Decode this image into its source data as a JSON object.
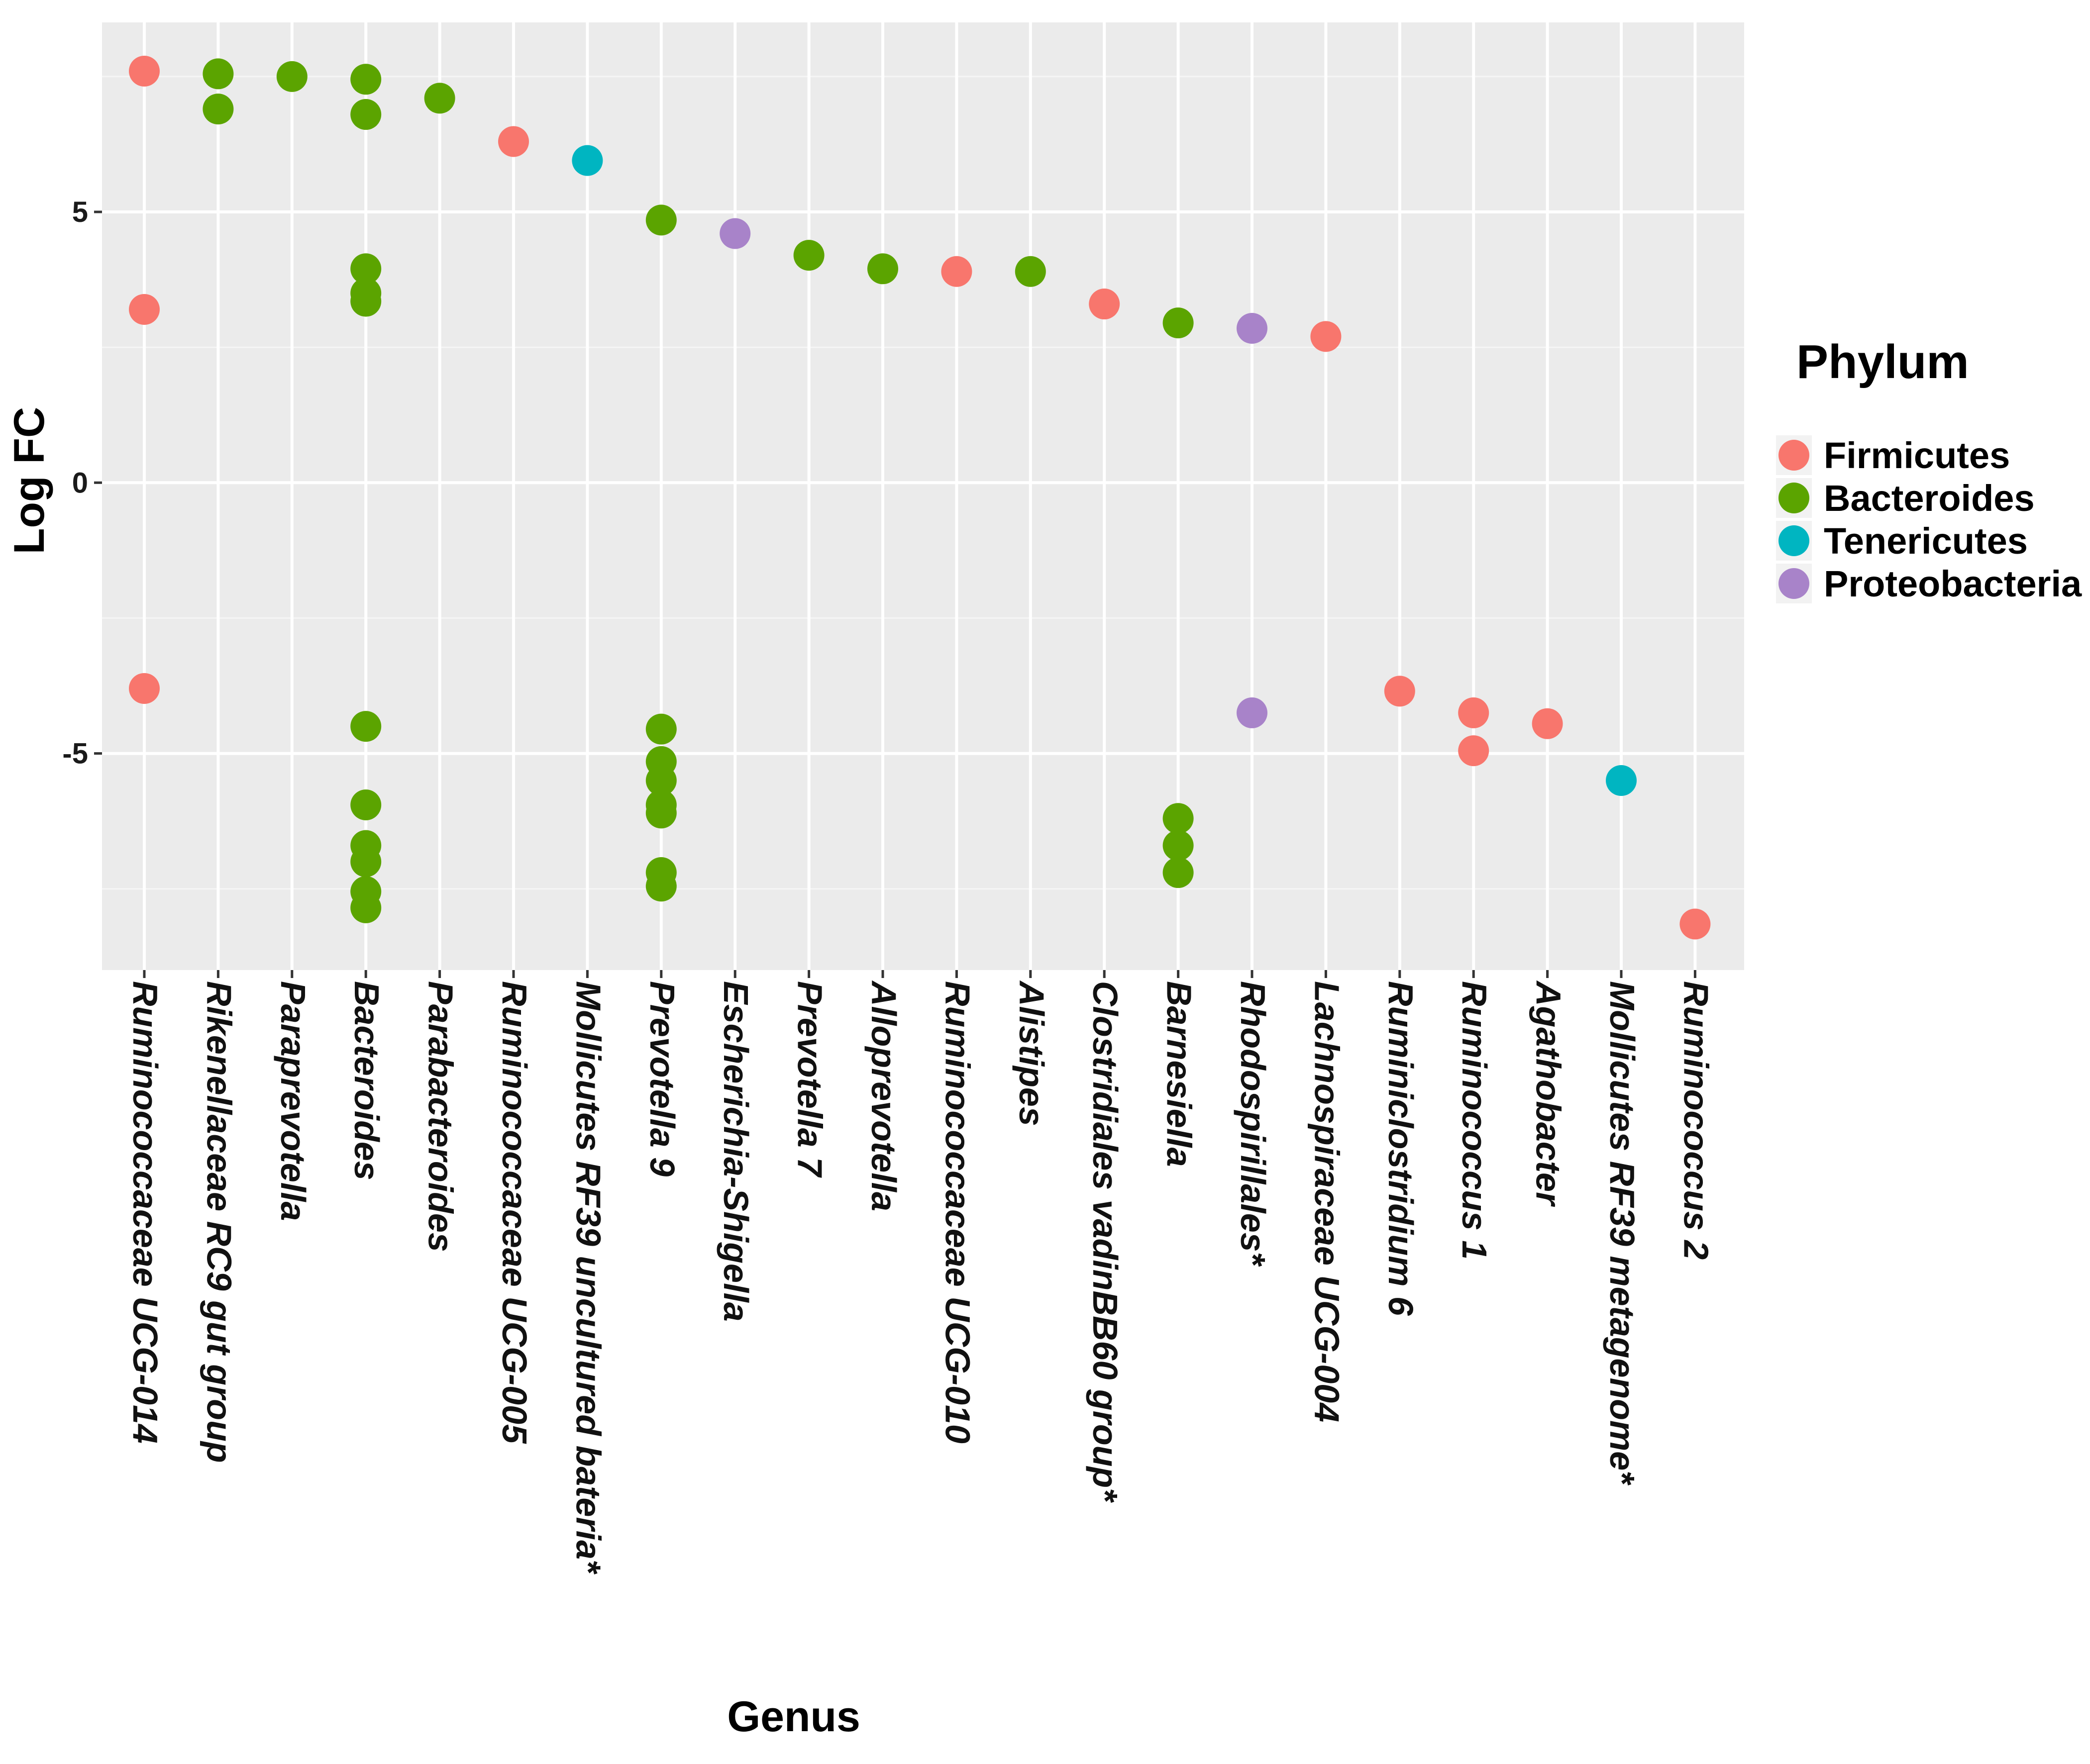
{
  "chart_data": {
    "type": "scatter",
    "title": "",
    "xlabel": "Genus",
    "ylabel": "Log FC",
    "ylim": [
      -9,
      8.5
    ],
    "yticks": [
      -5,
      0,
      5
    ],
    "ytick_labels": [
      "-5",
      "0",
      "5"
    ],
    "grid": true,
    "legend_title": "Phylum",
    "legend_position": "right",
    "phyla": [
      {
        "name": "Firmicutes",
        "color": "#F8766D"
      },
      {
        "name": "Bacteroides",
        "color": "#5BA400"
      },
      {
        "name": "Tenericutes",
        "color": "#00B5C1"
      },
      {
        "name": "Proteobacteria",
        "color": "#A883C9"
      }
    ],
    "categories": [
      "Ruminococcaceae UCG-014",
      "Rikenellaceae RC9 gut group",
      "Paraprevotella",
      "Bacteroides",
      "Parabacteroides",
      "Ruminococcaceae UCG-005",
      "Mollicutes RF39 uncultured bateria*",
      "Prevotella 9",
      "Escherichia-Shigella",
      "Prevotella 7",
      "Alloprevotella",
      "Ruminococcaceae UCG-010",
      "Alistipes",
      "Clostridiales vadinBB60 group*",
      "Barnesiella",
      "Rhodospirillales*",
      "Lachnospiraceae UCG-004",
      "Ruminiclostridium 6",
      "Ruminococcus 1",
      "Agathobacter",
      "Mollicutes RF39 metagenome*",
      "Ruminococcus 2"
    ],
    "series": [
      {
        "name": "Firmicutes",
        "points": [
          {
            "x": "Ruminococcaceae UCG-014",
            "y": 7.6
          },
          {
            "x": "Ruminococcaceae UCG-014",
            "y": 3.2
          },
          {
            "x": "Ruminococcaceae UCG-014",
            "y": -3.8
          },
          {
            "x": "Ruminococcaceae UCG-005",
            "y": 6.3
          },
          {
            "x": "Ruminococcaceae UCG-010",
            "y": 3.9
          },
          {
            "x": "Clostridiales vadinBB60 group*",
            "y": 3.3
          },
          {
            "x": "Lachnospiraceae UCG-004",
            "y": 2.7
          },
          {
            "x": "Ruminiclostridium 6",
            "y": -3.85
          },
          {
            "x": "Ruminococcus 1",
            "y": -4.25
          },
          {
            "x": "Ruminococcus 1",
            "y": -4.95
          },
          {
            "x": "Agathobacter",
            "y": -4.45
          },
          {
            "x": "Ruminococcus 2",
            "y": -8.15
          }
        ]
      },
      {
        "name": "Bacteroides",
        "points": [
          {
            "x": "Rikenellaceae RC9 gut group",
            "y": 7.55
          },
          {
            "x": "Rikenellaceae RC9 gut group",
            "y": 6.9
          },
          {
            "x": "Paraprevotella",
            "y": 7.5
          },
          {
            "x": "Bacteroides",
            "y": 7.45
          },
          {
            "x": "Bacteroides",
            "y": 6.8
          },
          {
            "x": "Bacteroides",
            "y": 3.95
          },
          {
            "x": "Bacteroides",
            "y": 3.5
          },
          {
            "x": "Bacteroides",
            "y": 3.35
          },
          {
            "x": "Bacteroides",
            "y": -4.5
          },
          {
            "x": "Bacteroides",
            "y": -5.95
          },
          {
            "x": "Bacteroides",
            "y": -6.7
          },
          {
            "x": "Bacteroides",
            "y": -7.0
          },
          {
            "x": "Bacteroides",
            "y": -7.55
          },
          {
            "x": "Bacteroides",
            "y": -7.85
          },
          {
            "x": "Parabacteroides",
            "y": 7.1
          },
          {
            "x": "Prevotella 9",
            "y": 4.85
          },
          {
            "x": "Prevotella 9",
            "y": -4.55
          },
          {
            "x": "Prevotella 9",
            "y": -5.15
          },
          {
            "x": "Prevotella 9",
            "y": -5.5
          },
          {
            "x": "Prevotella 9",
            "y": -5.95
          },
          {
            "x": "Prevotella 9",
            "y": -6.1
          },
          {
            "x": "Prevotella 9",
            "y": -7.2
          },
          {
            "x": "Prevotella 9",
            "y": -7.45
          },
          {
            "x": "Prevotella 7",
            "y": 4.2
          },
          {
            "x": "Alloprevotella",
            "y": 3.95
          },
          {
            "x": "Alistipes",
            "y": 3.9
          },
          {
            "x": "Barnesiella",
            "y": 2.95
          },
          {
            "x": "Barnesiella",
            "y": -6.2
          },
          {
            "x": "Barnesiella",
            "y": -6.7
          },
          {
            "x": "Barnesiella",
            "y": -7.2
          }
        ]
      },
      {
        "name": "Tenericutes",
        "points": [
          {
            "x": "Mollicutes RF39 uncultured bateria*",
            "y": 5.95
          },
          {
            "x": "Mollicutes RF39 metagenome*",
            "y": -5.5
          }
        ]
      },
      {
        "name": "Proteobacteria",
        "points": [
          {
            "x": "Escherichia-Shigella",
            "y": 4.6
          },
          {
            "x": "Rhodospirillales*",
            "y": 2.85
          },
          {
            "x": "Rhodospirillales*",
            "y": -4.25
          }
        ]
      }
    ]
  }
}
